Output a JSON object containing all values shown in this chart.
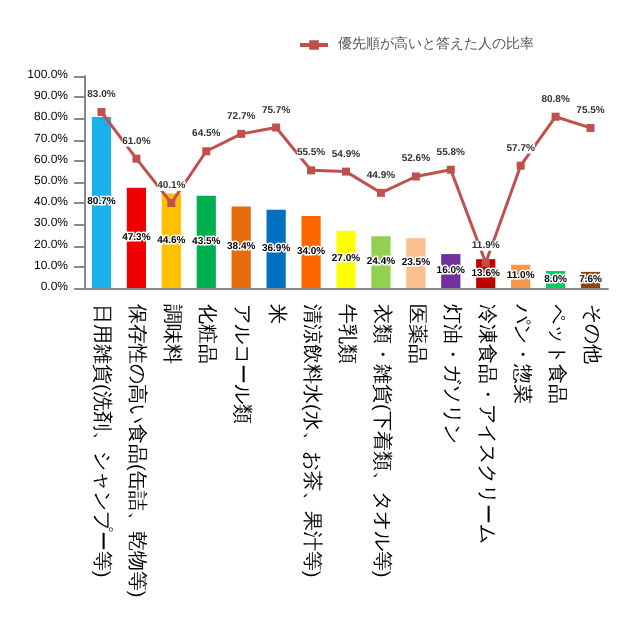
{
  "chart_data": {
    "type": "bar",
    "categories": [
      "日用雑貨(洗剤、シャンプー等)",
      "保存性の高い食品(缶詰、乾物等)",
      "調味料",
      "化粧品",
      "アルコール類",
      "米",
      "清涼飲料水(水、お茶、果汁等)",
      "牛乳類",
      "衣類・雑貨(下着類、タオル等)",
      "医薬品",
      "灯油・ガソリン",
      "冷凍食品・アイスクリーム",
      "パン・惣菜",
      "ペット食品",
      "その他"
    ],
    "series": [
      {
        "colors": [
          "#1ab0ea",
          "#f00000",
          "#ffc000",
          "#00b050",
          "#e46c0a",
          "#0070c0",
          "#ff6600",
          "#ffff00",
          "#92d050",
          "#fac090",
          "#7030a0",
          "#c00000",
          "#f79646",
          "#00cc66",
          "#8b4513"
        ],
        "values": [
          80.7,
          47.3,
          44.6,
          43.5,
          38.4,
          36.9,
          34.0,
          27.0,
          24.4,
          23.5,
          16.0,
          13.6,
          11.0,
          8.0,
          7.6
        ],
        "value_labels": [
          "80.7%",
          "47.3%",
          "44.6%",
          "43.5%",
          "38.4%",
          "36.9%",
          "34.0%",
          "27.0%",
          "24.4%",
          "23.5%",
          "16.0%",
          "13.6%",
          "11.0%",
          "8.0%",
          "7.6%"
        ]
      },
      {
        "type": "line",
        "name": "優先順が高いと答えた人の比率",
        "color": "#c0504d",
        "marker": "square",
        "values": [
          83.0,
          61.0,
          40.1,
          64.5,
          72.7,
          75.7,
          55.5,
          54.9,
          44.9,
          52.6,
          55.8,
          11.9,
          57.7,
          80.8,
          75.5
        ],
        "value_labels": [
          "83.0%",
          "61.0%",
          "40.1%",
          "64.5%",
          "72.7%",
          "75.7%",
          "55.5%",
          "54.9%",
          "44.9%",
          "52.6%",
          "55.8%",
          "11.9%",
          "57.7%",
          "80.8%",
          "75.5%"
        ]
      }
    ],
    "ylim": [
      0,
      100
    ],
    "yticks": [
      {
        "value": 0,
        "label": "0.0%"
      },
      {
        "value": 10,
        "label": "10.0%"
      },
      {
        "value": 20,
        "label": "20.0%"
      },
      {
        "value": 30,
        "label": "30.0%"
      },
      {
        "value": 40,
        "label": "40.0%"
      },
      {
        "value": 50,
        "label": "50.0%"
      },
      {
        "value": 60,
        "label": "60.0%"
      },
      {
        "value": 70,
        "label": "70.0%"
      },
      {
        "value": 80,
        "label": "80.0%"
      },
      {
        "value": 90,
        "label": "90.0%"
      },
      {
        "value": 100,
        "label": "100.0%"
      }
    ],
    "legend": "top right",
    "grid": false
  }
}
